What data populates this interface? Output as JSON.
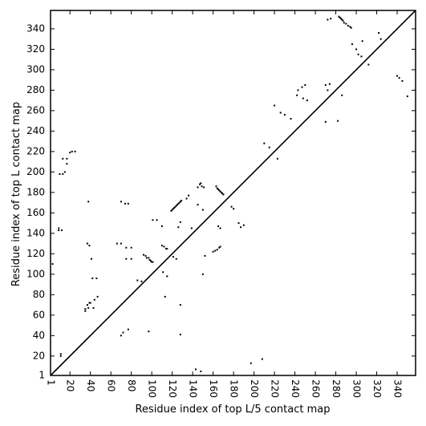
{
  "chart_data": {
    "type": "scatter",
    "xlabel": "Residue index of top L/5 contact map",
    "ylabel": "Residue index of top L contact map",
    "xlim": [
      1,
      358
    ],
    "ylim": [
      1,
      358
    ],
    "x_ticks": [
      1,
      20,
      40,
      60,
      80,
      100,
      120,
      140,
      160,
      180,
      200,
      220,
      240,
      260,
      280,
      300,
      320,
      340
    ],
    "y_ticks": [
      1,
      20,
      40,
      60,
      80,
      100,
      120,
      140,
      160,
      180,
      200,
      220,
      240,
      260,
      280,
      300,
      320,
      340
    ],
    "x_tick_rotation": -90,
    "diagonal": true,
    "grid": false,
    "legend": "none",
    "marker_color": "#000000",
    "series": [
      {
        "values": [
          [
            3,
            110
          ],
          [
            11,
            20
          ],
          [
            11,
            22
          ],
          [
            9,
            145
          ],
          [
            9,
            143
          ],
          [
            12,
            143
          ],
          [
            10,
            198
          ],
          [
            13,
            198
          ],
          [
            13,
            213
          ],
          [
            17,
            213
          ],
          [
            17,
            208
          ],
          [
            20,
            219
          ],
          [
            22,
            220
          ],
          [
            25,
            220
          ],
          [
            15,
            200
          ],
          [
            35,
            64
          ],
          [
            35,
            66
          ],
          [
            37,
            70
          ],
          [
            40,
            72
          ],
          [
            44,
            75
          ],
          [
            47,
            78
          ],
          [
            46,
            96
          ],
          [
            42,
            96
          ],
          [
            39,
            72
          ],
          [
            37,
            130
          ],
          [
            39,
            128
          ],
          [
            41,
            115
          ],
          [
            38,
            171
          ],
          [
            38,
            67
          ],
          [
            43,
            67
          ],
          [
            66,
            130
          ],
          [
            70,
            130
          ],
          [
            70,
            171
          ],
          [
            74,
            169
          ],
          [
            77,
            169
          ],
          [
            75,
            126
          ],
          [
            80,
            126
          ],
          [
            75,
            115
          ],
          [
            80,
            115
          ],
          [
            72,
            43
          ],
          [
            77,
            46
          ],
          [
            70,
            40
          ],
          [
            86,
            94
          ],
          [
            90,
            93
          ],
          [
            92,
            119
          ],
          [
            94,
            118
          ],
          [
            95,
            116
          ],
          [
            97,
            116
          ],
          [
            98,
            114
          ],
          [
            99,
            113
          ],
          [
            100,
            112
          ],
          [
            101,
            112
          ],
          [
            97,
            44
          ],
          [
            101,
            153
          ],
          [
            105,
            153
          ],
          [
            110,
            147
          ],
          [
            110,
            128
          ],
          [
            112,
            127
          ],
          [
            114,
            125
          ],
          [
            115,
            125
          ],
          [
            111,
            102
          ],
          [
            115,
            98
          ],
          [
            113,
            78
          ],
          [
            124,
            115
          ],
          [
            121,
            117
          ],
          [
            126,
            146
          ],
          [
            128,
            151
          ],
          [
            119,
            162
          ],
          [
            120,
            163
          ],
          [
            121,
            164
          ],
          [
            122,
            165
          ],
          [
            123,
            166
          ],
          [
            124,
            167
          ],
          [
            125,
            168
          ],
          [
            126,
            169
          ],
          [
            127,
            170
          ],
          [
            128,
            171
          ],
          [
            129,
            172
          ],
          [
            128,
            70
          ],
          [
            128,
            41
          ],
          [
            136,
            177
          ],
          [
            134,
            174
          ],
          [
            139,
            145
          ],
          [
            145,
            185
          ],
          [
            147,
            188
          ],
          [
            149,
            186
          ],
          [
            151,
            185
          ],
          [
            148,
            189
          ],
          [
            150,
            163
          ],
          [
            145,
            168
          ],
          [
            143,
            7
          ],
          [
            148,
            5
          ],
          [
            150,
            100
          ],
          [
            152,
            118
          ],
          [
            160,
            122
          ],
          [
            162,
            123
          ],
          [
            164,
            124
          ],
          [
            166,
            126
          ],
          [
            167,
            127
          ],
          [
            163,
            186
          ],
          [
            164,
            184
          ],
          [
            165,
            183
          ],
          [
            166,
            182
          ],
          [
            167,
            181
          ],
          [
            168,
            180
          ],
          [
            169,
            179
          ],
          [
            170,
            178
          ],
          [
            165,
            147
          ],
          [
            167,
            145
          ],
          [
            178,
            166
          ],
          [
            180,
            164
          ],
          [
            185,
            150
          ],
          [
            187,
            146
          ],
          [
            190,
            148
          ],
          [
            197,
            13
          ],
          [
            208,
            17
          ],
          [
            210,
            228
          ],
          [
            215,
            224
          ],
          [
            220,
            265
          ],
          [
            223,
            213
          ],
          [
            226,
            258
          ],
          [
            230,
            256
          ],
          [
            236,
            252
          ],
          [
            243,
            280
          ],
          [
            247,
            283
          ],
          [
            250,
            285
          ],
          [
            248,
            272
          ],
          [
            252,
            270
          ],
          [
            242,
            275
          ],
          [
            270,
            249
          ],
          [
            272,
            280
          ],
          [
            270,
            285
          ],
          [
            274,
            286
          ],
          [
            272,
            349
          ],
          [
            275,
            350
          ],
          [
            282,
            250
          ],
          [
            286,
            275
          ],
          [
            283,
            352
          ],
          [
            284,
            351
          ],
          [
            285,
            350
          ],
          [
            286,
            349
          ],
          [
            287,
            348
          ],
          [
            288,
            346
          ],
          [
            290,
            345
          ],
          [
            292,
            343
          ],
          [
            294,
            342
          ],
          [
            295,
            341
          ],
          [
            296,
            325
          ],
          [
            300,
            320
          ],
          [
            302,
            315
          ],
          [
            305,
            313
          ],
          [
            306,
            328
          ],
          [
            312,
            305
          ],
          [
            322,
            336
          ],
          [
            324,
            330
          ],
          [
            340,
            294
          ],
          [
            342,
            292
          ],
          [
            345,
            289
          ],
          [
            350,
            274
          ]
        ]
      }
    ]
  }
}
